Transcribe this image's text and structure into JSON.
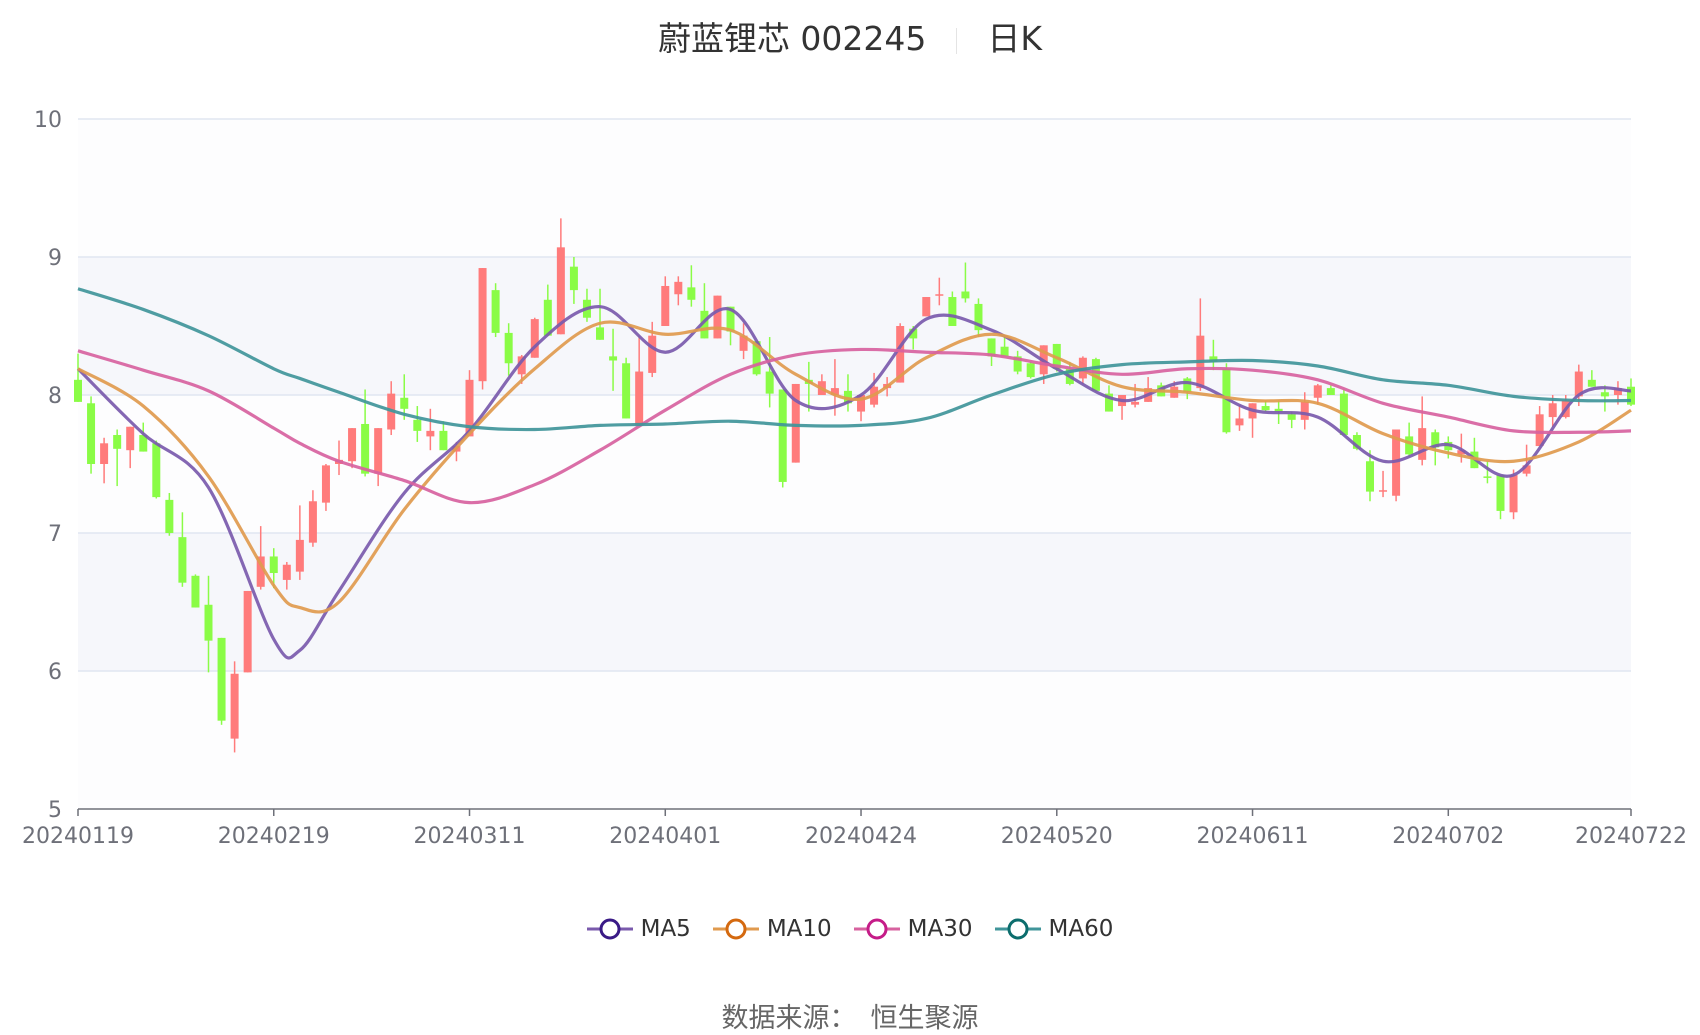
{
  "title": {
    "name": "蔚蓝锂芯 002245",
    "period": "日K"
  },
  "source": {
    "label": "数据来源：",
    "value": "恒生聚源"
  },
  "colors": {
    "up": "#ff7b7b",
    "down": "#8afc46",
    "ma5": "#7a5aac",
    "ma10": "#e09a4e",
    "ma30": "#d7629f",
    "ma60": "#40959a",
    "ma5_icon": "#3a1a86",
    "ma10_icon": "#d4690f",
    "ma30_icon": "#c51c88",
    "ma60_icon": "#0c6d6d"
  },
  "chart_data": {
    "type": "candlestick",
    "title": "蔚蓝锂芯 002245 日K",
    "ylim": [
      5,
      10
    ],
    "yticks": [
      "5",
      "6",
      "7",
      "8",
      "9",
      "10"
    ],
    "xticks": [
      {
        "index": 0,
        "label": "20240119"
      },
      {
        "index": 15,
        "label": "20240219"
      },
      {
        "index": 30,
        "label": "20240311"
      },
      {
        "index": 45,
        "label": "20240401"
      },
      {
        "index": 60,
        "label": "20240424"
      },
      {
        "index": 75,
        "label": "20240520"
      },
      {
        "index": 90,
        "label": "20240611"
      },
      {
        "index": 105,
        "label": "20240702"
      },
      {
        "index": 119,
        "label": "20240722"
      }
    ],
    "candle_format": [
      "open",
      "close",
      "low",
      "high"
    ],
    "candles": [
      [
        8.11,
        7.95,
        7.95,
        8.3
      ],
      [
        7.94,
        7.5,
        7.43,
        7.99
      ],
      [
        7.5,
        7.65,
        7.36,
        7.69
      ],
      [
        7.71,
        7.61,
        7.34,
        7.75
      ],
      [
        7.6,
        7.77,
        7.47,
        7.77
      ],
      [
        7.71,
        7.59,
        7.59,
        7.8
      ],
      [
        7.65,
        7.26,
        7.25,
        7.67
      ],
      [
        7.24,
        7.0,
        6.98,
        7.29
      ],
      [
        6.97,
        6.64,
        6.61,
        7.15
      ],
      [
        6.69,
        6.46,
        6.46,
        6.7
      ],
      [
        6.48,
        6.22,
        5.99,
        6.69
      ],
      [
        6.24,
        5.64,
        5.61,
        6.24
      ],
      [
        5.51,
        5.98,
        5.41,
        6.07
      ],
      [
        5.99,
        6.58,
        5.99,
        6.58
      ],
      [
        6.61,
        6.83,
        6.59,
        7.05
      ],
      [
        6.83,
        6.71,
        6.6,
        6.89
      ],
      [
        6.66,
        6.77,
        6.59,
        6.79
      ],
      [
        6.72,
        6.95,
        6.66,
        7.2
      ],
      [
        6.93,
        7.23,
        6.9,
        7.31
      ],
      [
        7.22,
        7.49,
        7.16,
        7.5
      ],
      [
        7.5,
        7.53,
        7.42,
        7.67
      ],
      [
        7.52,
        7.76,
        7.47,
        7.76
      ],
      [
        7.79,
        7.43,
        7.41,
        8.04
      ],
      [
        7.43,
        7.76,
        7.34,
        7.76
      ],
      [
        7.75,
        8.01,
        7.71,
        8.1
      ],
      [
        7.98,
        7.9,
        7.82,
        8.15
      ],
      [
        7.82,
        7.74,
        7.66,
        7.92
      ],
      [
        7.7,
        7.74,
        7.6,
        7.9
      ],
      [
        7.74,
        7.6,
        7.6,
        7.81
      ],
      [
        7.59,
        7.63,
        7.52,
        7.66
      ],
      [
        7.7,
        8.11,
        7.7,
        8.18
      ],
      [
        8.1,
        8.92,
        8.04,
        8.92
      ],
      [
        8.76,
        8.45,
        8.42,
        8.81
      ],
      [
        8.45,
        8.23,
        8.14,
        8.52
      ],
      [
        8.15,
        8.28,
        8.08,
        8.29
      ],
      [
        8.27,
        8.55,
        8.27,
        8.56
      ],
      [
        8.69,
        8.43,
        8.43,
        8.8
      ],
      [
        8.44,
        9.07,
        8.44,
        9.28
      ],
      [
        8.93,
        8.76,
        8.66,
        9.0
      ],
      [
        8.69,
        8.56,
        8.53,
        8.77
      ],
      [
        8.49,
        8.4,
        8.4,
        8.77
      ],
      [
        8.28,
        8.25,
        8.03,
        8.48
      ],
      [
        8.23,
        7.83,
        7.83,
        8.27
      ],
      [
        7.78,
        8.17,
        7.78,
        8.43
      ],
      [
        8.16,
        8.43,
        8.13,
        8.53
      ],
      [
        8.5,
        8.79,
        8.5,
        8.86
      ],
      [
        8.73,
        8.82,
        8.65,
        8.86
      ],
      [
        8.78,
        8.69,
        8.64,
        8.94
      ],
      [
        8.61,
        8.41,
        8.41,
        8.81
      ],
      [
        8.41,
        8.72,
        8.41,
        8.72
      ],
      [
        8.64,
        8.46,
        8.36,
        8.64
      ],
      [
        8.32,
        8.43,
        8.26,
        8.52
      ],
      [
        8.39,
        8.15,
        8.14,
        8.39
      ],
      [
        8.17,
        8.01,
        7.91,
        8.42
      ],
      [
        8.04,
        7.37,
        7.33,
        8.04
      ],
      [
        7.51,
        8.08,
        7.51,
        8.08
      ],
      [
        8.11,
        8.08,
        7.88,
        8.24
      ],
      [
        8.0,
        8.1,
        8.0,
        8.15
      ],
      [
        8.0,
        8.05,
        7.85,
        8.26
      ],
      [
        8.03,
        7.94,
        7.88,
        8.15
      ],
      [
        7.88,
        8.0,
        7.81,
        8.0
      ],
      [
        7.93,
        8.06,
        7.91,
        8.16
      ],
      [
        8.05,
        8.08,
        7.99,
        8.13
      ],
      [
        8.09,
        8.5,
        8.09,
        8.52
      ],
      [
        8.48,
        8.41,
        8.33,
        8.5
      ],
      [
        8.57,
        8.71,
        8.57,
        8.71
      ],
      [
        8.72,
        8.73,
        8.65,
        8.85
      ],
      [
        8.71,
        8.5,
        8.5,
        8.75
      ],
      [
        8.75,
        8.7,
        8.67,
        8.96
      ],
      [
        8.66,
        8.47,
        8.42,
        8.7
      ],
      [
        8.41,
        8.28,
        8.21,
        8.41
      ],
      [
        8.35,
        8.28,
        8.28,
        8.43
      ],
      [
        8.28,
        8.17,
        8.15,
        8.32
      ],
      [
        8.23,
        8.13,
        8.12,
        8.24
      ],
      [
        8.15,
        8.36,
        8.08,
        8.36
      ],
      [
        8.37,
        8.19,
        8.17,
        8.37
      ],
      [
        8.19,
        8.08,
        8.07,
        8.24
      ],
      [
        8.12,
        8.27,
        8.08,
        8.28
      ],
      [
        8.26,
        8.03,
        8.02,
        8.27
      ],
      [
        8.01,
        7.88,
        7.88,
        8.07
      ],
      [
        7.92,
        8.0,
        7.82,
        8.0
      ],
      [
        7.93,
        7.95,
        7.91,
        8.08
      ],
      [
        7.95,
        8.05,
        7.95,
        8.13
      ],
      [
        8.07,
        7.99,
        7.99,
        8.09
      ],
      [
        7.98,
        8.06,
        7.98,
        8.1
      ],
      [
        8.12,
        8.02,
        7.97,
        8.13
      ],
      [
        8.05,
        8.43,
        8.03,
        8.7
      ],
      [
        8.28,
        8.24,
        8.18,
        8.4
      ],
      [
        8.19,
        7.73,
        7.72,
        8.23
      ],
      [
        7.78,
        7.83,
        7.74,
        7.93
      ],
      [
        7.83,
        7.94,
        7.69,
        7.94
      ],
      [
        7.92,
        7.89,
        7.88,
        7.96
      ],
      [
        7.9,
        7.88,
        7.79,
        7.96
      ],
      [
        7.86,
        7.82,
        7.76,
        7.88
      ],
      [
        7.82,
        7.95,
        7.75,
        8.02
      ],
      [
        7.98,
        8.07,
        7.93,
        8.08
      ],
      [
        8.05,
        8.0,
        8.0,
        8.07
      ],
      [
        8.01,
        7.71,
        7.71,
        8.04
      ],
      [
        7.71,
        7.61,
        7.6,
        7.73
      ],
      [
        7.52,
        7.3,
        7.23,
        7.6
      ],
      [
        7.3,
        7.31,
        7.26,
        7.45
      ],
      [
        7.27,
        7.75,
        7.23,
        7.75
      ],
      [
        7.7,
        7.57,
        7.55,
        7.8
      ],
      [
        7.53,
        7.76,
        7.49,
        7.99
      ],
      [
        7.73,
        7.62,
        7.49,
        7.75
      ],
      [
        7.66,
        7.6,
        7.54,
        7.7
      ],
      [
        7.57,
        7.6,
        7.51,
        7.72
      ],
      [
        7.59,
        7.47,
        7.47,
        7.69
      ],
      [
        7.41,
        7.4,
        7.36,
        7.52
      ],
      [
        7.42,
        7.16,
        7.1,
        7.42
      ],
      [
        7.15,
        7.42,
        7.1,
        7.46
      ],
      [
        7.43,
        7.49,
        7.41,
        7.64
      ],
      [
        7.63,
        7.86,
        7.63,
        7.92
      ],
      [
        7.84,
        7.94,
        7.77,
        8.0
      ],
      [
        7.84,
        7.96,
        7.83,
        8.0
      ],
      [
        7.99,
        8.17,
        7.92,
        8.22
      ],
      [
        8.11,
        8.06,
        8.06,
        8.18
      ],
      [
        8.02,
        7.99,
        7.88,
        8.07
      ],
      [
        8.0,
        8.05,
        7.93,
        8.1
      ],
      [
        8.06,
        7.93,
        7.92,
        8.12
      ]
    ],
    "ma_sample_indices": [
      0,
      5,
      10,
      15,
      17,
      20,
      25,
      30,
      35,
      40,
      45,
      50,
      55,
      60,
      65,
      70,
      75,
      80,
      85,
      90,
      95,
      100,
      105,
      110,
      115,
      119
    ],
    "series": [
      {
        "name": "MA5",
        "values": [
          8.19,
          7.72,
          7.33,
          6.23,
          6.15,
          6.58,
          7.29,
          7.74,
          8.35,
          8.64,
          8.31,
          8.62,
          7.96,
          8.0,
          8.55,
          8.47,
          8.19,
          7.96,
          8.09,
          7.89,
          7.84,
          7.52,
          7.64,
          7.42,
          8.0,
          8.03
        ]
      },
      {
        "name": "MA10",
        "values": [
          8.19,
          7.92,
          7.41,
          6.62,
          6.46,
          6.5,
          7.17,
          7.72,
          8.19,
          8.52,
          8.44,
          8.47,
          8.15,
          7.97,
          8.27,
          8.44,
          8.27,
          8.06,
          8.02,
          7.96,
          7.94,
          7.72,
          7.58,
          7.52,
          7.66,
          7.89
        ]
      },
      {
        "name": "MA30",
        "values": [
          8.32,
          8.18,
          8.03,
          7.76,
          7.65,
          7.52,
          7.38,
          7.22,
          7.35,
          7.6,
          7.89,
          8.15,
          8.29,
          8.33,
          8.31,
          8.29,
          8.21,
          8.15,
          8.19,
          8.18,
          8.11,
          7.94,
          7.84,
          7.74,
          7.73,
          7.74
        ]
      },
      {
        "name": "MA60",
        "values": [
          8.77,
          8.62,
          8.43,
          8.19,
          8.12,
          8.02,
          7.86,
          7.77,
          7.75,
          7.78,
          7.79,
          7.81,
          7.78,
          7.78,
          7.83,
          8.0,
          8.15,
          8.22,
          8.24,
          8.25,
          8.21,
          8.11,
          8.07,
          7.99,
          7.96,
          7.96
        ]
      }
    ],
    "legend": [
      "MA5",
      "MA10",
      "MA30",
      "MA60"
    ],
    "legend_position": "bottom",
    "grid": true
  }
}
